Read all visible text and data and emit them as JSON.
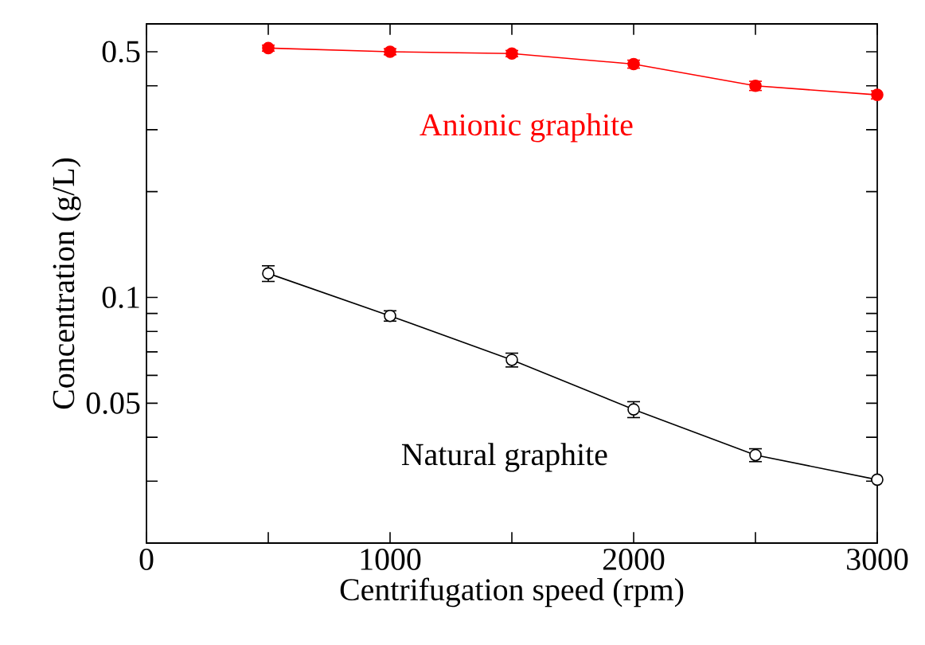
{
  "chart_data": {
    "type": "line",
    "xlabel": "Centrifugation speed (rpm)",
    "ylabel": "Concentration (g/L)",
    "log": "y",
    "x": [
      500,
      1000,
      1500,
      2000,
      2500,
      3000
    ],
    "series": [
      {
        "name": "Anionic graphite",
        "color": "#ff0000",
        "marker": "circle",
        "values": [
          0.512,
          0.5,
          0.494,
          0.461,
          0.4,
          0.377
        ],
        "errors": [
          0.01,
          0.01,
          0.01,
          0.012,
          0.012,
          0.01
        ]
      },
      {
        "name": "Natural graphite",
        "color": "#000000",
        "marker": "open circle",
        "values": [
          0.117,
          0.0886,
          0.0664,
          0.048,
          0.0356,
          0.0303
        ],
        "errors": [
          0.006,
          0.003,
          0.003,
          0.0025,
          0.0015,
          null
        ]
      }
    ],
    "xlim": [
      0,
      3000
    ],
    "ylim": [
      0.02,
      0.6
    ],
    "xticks": [
      0,
      {
        "value": 500,
        "label": null
      },
      1000,
      {
        "value": 1500,
        "label": null
      },
      2000,
      {
        "value": 2500,
        "label": null
      },
      3000
    ],
    "yticks": [
      {
        "value": 0.03,
        "label": null
      },
      {
        "value": 0.04,
        "label": null
      },
      0.05,
      {
        "value": 0.06,
        "label": null
      },
      {
        "value": 0.07,
        "label": null
      },
      {
        "value": 0.08,
        "label": null
      },
      {
        "value": 0.09,
        "label": null
      },
      0.1,
      {
        "value": 0.2,
        "label": null
      },
      {
        "value": 0.3,
        "label": null
      },
      {
        "value": 0.4,
        "label": null
      },
      0.5
    ],
    "line_style": "solid"
  }
}
